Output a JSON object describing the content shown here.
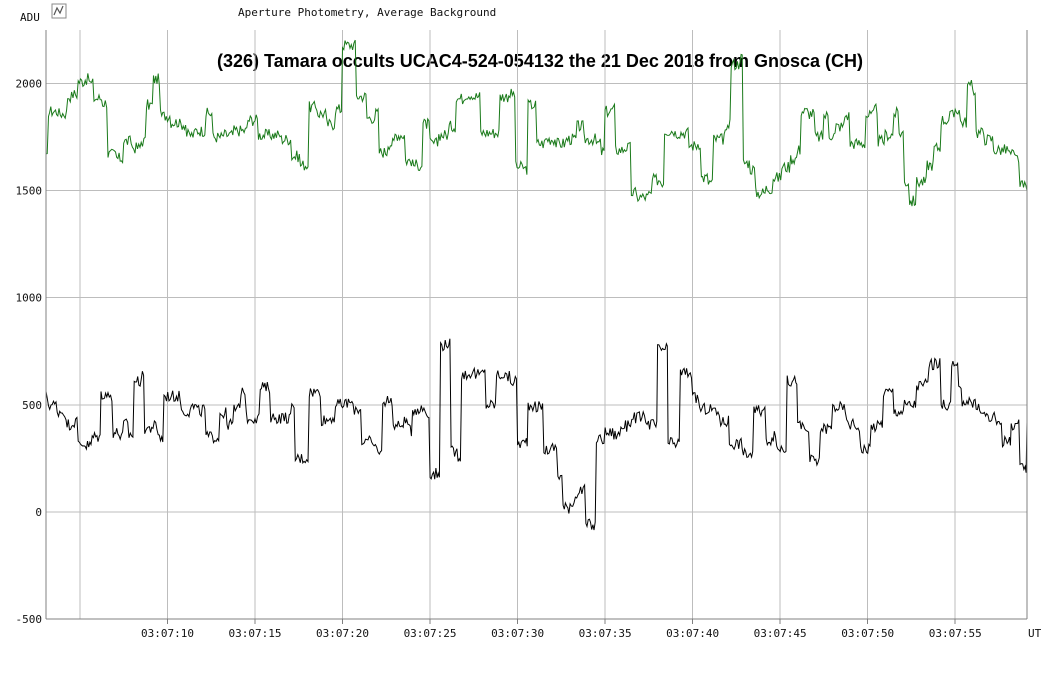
{
  "header": {
    "ylabel": "ADU",
    "subtitle": "Aperture Photometry, Average Background",
    "icon": "graph-icon"
  },
  "chart_data": {
    "type": "line",
    "title": "(326) Tamara occults UCAC4-524-054132 the 21 Dec 2018 from Gnosca (CH)",
    "xlabel": "UT",
    "ylabel": "ADU",
    "ylim": [
      -500,
      2250
    ],
    "xlim": [
      3.06,
      59.1
    ],
    "grid": true,
    "x_ticks": [
      {
        "value": 10,
        "label": "03:07:10"
      },
      {
        "value": 15,
        "label": "03:07:15"
      },
      {
        "value": 20,
        "label": "03:07:20"
      },
      {
        "value": 25,
        "label": "03:07:25"
      },
      {
        "value": 30,
        "label": "03:07:30"
      },
      {
        "value": 35,
        "label": "03:07:35"
      },
      {
        "value": 40,
        "label": "03:07:40"
      },
      {
        "value": 45,
        "label": "03:07:45"
      },
      {
        "value": 50,
        "label": "03:07:50"
      },
      {
        "value": 55,
        "label": "03:07:55"
      }
    ],
    "y_ticks": [
      {
        "value": -500,
        "label": "-500"
      },
      {
        "value": 0,
        "label": "0"
      },
      {
        "value": 500,
        "label": "500"
      },
      {
        "value": 1000,
        "label": "1000"
      },
      {
        "value": 1500,
        "label": "1500"
      },
      {
        "value": 2000,
        "label": "2000"
      }
    ],
    "series": [
      {
        "color": "#1a7a1a",
        "points": [
          [
            3.06,
            1650
          ],
          [
            3.2,
            1870
          ],
          [
            3.8,
            1860
          ],
          [
            4.3,
            1940
          ],
          [
            4.6,
            1950
          ],
          [
            4.9,
            2010
          ],
          [
            5.3,
            2020
          ],
          [
            5.6,
            2000
          ],
          [
            5.8,
            1930
          ],
          [
            6.3,
            1910
          ],
          [
            6.6,
            1670
          ],
          [
            7.1,
            1650
          ],
          [
            7.5,
            1730
          ],
          [
            8.0,
            1700
          ],
          [
            8.5,
            1730
          ],
          [
            8.8,
            1900
          ],
          [
            9.2,
            2020
          ],
          [
            9.6,
            1850
          ],
          [
            10.2,
            1820
          ],
          [
            10.7,
            1810
          ],
          [
            11.1,
            1760
          ],
          [
            11.6,
            1780
          ],
          [
            12.2,
            1860
          ],
          [
            12.6,
            1750
          ],
          [
            13.2,
            1760
          ],
          [
            13.8,
            1780
          ],
          [
            14.3,
            1780
          ],
          [
            14.6,
            1830
          ],
          [
            15.2,
            1760
          ],
          [
            15.8,
            1760
          ],
          [
            16.5,
            1740
          ],
          [
            17.1,
            1660
          ],
          [
            17.6,
            1620
          ],
          [
            18.1,
            1890
          ],
          [
            18.6,
            1860
          ],
          [
            19.1,
            1810
          ],
          [
            19.6,
            1880
          ],
          [
            20.0,
            2180
          ],
          [
            20.5,
            2180
          ],
          [
            20.8,
            1940
          ],
          [
            21.4,
            1840
          ],
          [
            21.9,
            1860
          ],
          [
            22.1,
            1680
          ],
          [
            22.6,
            1720
          ],
          [
            23.0,
            1760
          ],
          [
            23.6,
            1640
          ],
          [
            24.0,
            1620
          ],
          [
            24.6,
            1810
          ],
          [
            25.0,
            1720
          ],
          [
            25.5,
            1760
          ],
          [
            26.1,
            1800
          ],
          [
            26.5,
            1930
          ],
          [
            27.0,
            1950
          ],
          [
            27.5,
            1940
          ],
          [
            27.9,
            1770
          ],
          [
            28.6,
            1770
          ],
          [
            29.0,
            1940
          ],
          [
            29.5,
            1950
          ],
          [
            29.9,
            1610
          ],
          [
            30.4,
            1600
          ],
          [
            30.6,
            1900
          ],
          [
            31.1,
            1720
          ],
          [
            31.6,
            1740
          ],
          [
            32.2,
            1720
          ],
          [
            32.8,
            1740
          ],
          [
            33.4,
            1800
          ],
          [
            33.8,
            1740
          ],
          [
            34.5,
            1720
          ],
          [
            34.8,
            1680
          ],
          [
            35.0,
            1870
          ],
          [
            35.4,
            1880
          ],
          [
            35.6,
            1690
          ],
          [
            36.1,
            1700
          ],
          [
            36.5,
            1490
          ],
          [
            36.8,
            1470
          ],
          [
            37.5,
            1480
          ],
          [
            37.7,
            1550
          ],
          [
            38.2,
            1540
          ],
          [
            38.4,
            1780
          ],
          [
            39.0,
            1770
          ],
          [
            39.8,
            1710
          ],
          [
            40.3,
            1720
          ],
          [
            40.5,
            1560
          ],
          [
            40.9,
            1540
          ],
          [
            41.2,
            1740
          ],
          [
            41.8,
            1760
          ],
          [
            42.0,
            1820
          ],
          [
            42.2,
            2090
          ],
          [
            42.7,
            2120
          ],
          [
            42.9,
            1630
          ],
          [
            43.3,
            1600
          ],
          [
            43.6,
            1490
          ],
          [
            44.2,
            1510
          ],
          [
            44.6,
            1560
          ],
          [
            45.1,
            1610
          ],
          [
            45.6,
            1650
          ],
          [
            46.0,
            1690
          ],
          [
            46.2,
            1870
          ],
          [
            46.6,
            1860
          ],
          [
            47.0,
            1750
          ],
          [
            47.5,
            1850
          ],
          [
            47.8,
            1760
          ],
          [
            48.2,
            1800
          ],
          [
            48.7,
            1850
          ],
          [
            49.0,
            1720
          ],
          [
            49.5,
            1720
          ],
          [
            49.9,
            1850
          ],
          [
            50.4,
            1880
          ],
          [
            50.6,
            1730
          ],
          [
            51.0,
            1760
          ],
          [
            51.5,
            1860
          ],
          [
            51.8,
            1770
          ],
          [
            52.1,
            1540
          ],
          [
            52.4,
            1450
          ],
          [
            52.8,
            1540
          ],
          [
            53.4,
            1620
          ],
          [
            53.8,
            1700
          ],
          [
            54.2,
            1830
          ],
          [
            54.7,
            1850
          ],
          [
            55.0,
            1880
          ],
          [
            55.3,
            1820
          ],
          [
            55.7,
            1990
          ],
          [
            56.0,
            1970
          ],
          [
            56.2,
            1770
          ],
          [
            56.7,
            1740
          ],
          [
            57.2,
            1690
          ],
          [
            57.6,
            1690
          ],
          [
            58.1,
            1670
          ],
          [
            58.4,
            1650
          ],
          [
            58.7,
            1520
          ],
          [
            59.1,
            1500
          ]
        ]
      },
      {
        "color": "#000000",
        "points": [
          [
            3.06,
            540
          ],
          [
            3.2,
            500
          ],
          [
            3.7,
            470
          ],
          [
            4.2,
            410
          ],
          [
            4.6,
            420
          ],
          [
            4.9,
            320
          ],
          [
            5.3,
            310
          ],
          [
            5.7,
            350
          ],
          [
            6.1,
            350
          ],
          [
            6.2,
            550
          ],
          [
            6.6,
            540
          ],
          [
            6.9,
            370
          ],
          [
            7.3,
            350
          ],
          [
            7.5,
            410
          ],
          [
            7.8,
            360
          ],
          [
            8.1,
            610
          ],
          [
            8.5,
            630
          ],
          [
            8.7,
            390
          ],
          [
            9.1,
            400
          ],
          [
            9.4,
            370
          ],
          [
            9.6,
            340
          ],
          [
            9.8,
            540
          ],
          [
            10.3,
            540
          ],
          [
            10.8,
            470
          ],
          [
            11.3,
            490
          ],
          [
            11.7,
            470
          ],
          [
            12.0,
            480
          ],
          [
            12.2,
            350
          ],
          [
            12.7,
            350
          ],
          [
            13.0,
            460
          ],
          [
            13.4,
            410
          ],
          [
            13.8,
            480
          ],
          [
            14.2,
            570
          ],
          [
            14.5,
            440
          ],
          [
            15.0,
            440
          ],
          [
            15.3,
            580
          ],
          [
            15.7,
            580
          ],
          [
            15.9,
            440
          ],
          [
            16.6,
            440
          ],
          [
            17.1,
            480
          ],
          [
            17.3,
            250
          ],
          [
            17.8,
            250
          ],
          [
            18.1,
            560
          ],
          [
            18.5,
            560
          ],
          [
            18.8,
            430
          ],
          [
            19.3,
            440
          ],
          [
            19.6,
            500
          ],
          [
            20.2,
            510
          ],
          [
            20.6,
            480
          ],
          [
            20.9,
            480
          ],
          [
            21.1,
            330
          ],
          [
            21.6,
            320
          ],
          [
            21.8,
            300
          ],
          [
            22.1,
            270
          ],
          [
            22.3,
            520
          ],
          [
            22.7,
            520
          ],
          [
            22.9,
            400
          ],
          [
            23.4,
            420
          ],
          [
            23.8,
            380
          ],
          [
            24.0,
            480
          ],
          [
            24.5,
            480
          ],
          [
            24.8,
            450
          ],
          [
            25.0,
            180
          ],
          [
            25.4,
            170
          ],
          [
            25.6,
            780
          ],
          [
            26.0,
            790
          ],
          [
            26.2,
            280
          ],
          [
            26.6,
            260
          ],
          [
            26.8,
            640
          ],
          [
            27.3,
            650
          ],
          [
            27.6,
            640
          ],
          [
            28.0,
            650
          ],
          [
            28.2,
            500
          ],
          [
            28.6,
            500
          ],
          [
            28.8,
            640
          ],
          [
            29.3,
            630
          ],
          [
            29.6,
            610
          ],
          [
            30.0,
            320
          ],
          [
            30.5,
            330
          ],
          [
            30.6,
            500
          ],
          [
            31.0,
            490
          ],
          [
            31.5,
            290
          ],
          [
            32.0,
            300
          ],
          [
            32.3,
            170
          ],
          [
            32.6,
            20
          ],
          [
            33.0,
            40
          ],
          [
            33.3,
            90
          ],
          [
            33.6,
            100
          ],
          [
            33.9,
            -60
          ],
          [
            34.3,
            -70
          ],
          [
            34.5,
            340
          ],
          [
            35.0,
            370
          ],
          [
            35.5,
            360
          ],
          [
            35.9,
            400
          ],
          [
            36.3,
            420
          ],
          [
            36.6,
            440
          ],
          [
            37.1,
            440
          ],
          [
            37.4,
            410
          ],
          [
            37.9,
            400
          ],
          [
            38.0,
            760
          ],
          [
            38.5,
            760
          ],
          [
            38.6,
            320
          ],
          [
            39.1,
            320
          ],
          [
            39.3,
            650
          ],
          [
            39.8,
            650
          ],
          [
            40.0,
            530
          ],
          [
            40.4,
            480
          ],
          [
            40.8,
            480
          ],
          [
            41.3,
            460
          ],
          [
            41.6,
            420
          ],
          [
            42.0,
            430
          ],
          [
            42.1,
            320
          ],
          [
            42.5,
            320
          ],
          [
            42.9,
            270
          ],
          [
            43.3,
            270
          ],
          [
            43.5,
            470
          ],
          [
            43.9,
            470
          ],
          [
            44.2,
            340
          ],
          [
            44.6,
            350
          ],
          [
            44.8,
            300
          ],
          [
            45.2,
            300
          ],
          [
            45.4,
            610
          ],
          [
            45.9,
            620
          ],
          [
            46.0,
            400
          ],
          [
            46.4,
            380
          ],
          [
            46.7,
            240
          ],
          [
            47.1,
            230
          ],
          [
            47.3,
            390
          ],
          [
            47.7,
            390
          ],
          [
            48.0,
            490
          ],
          [
            48.5,
            480
          ],
          [
            48.8,
            410
          ],
          [
            49.3,
            400
          ],
          [
            49.6,
            290
          ],
          [
            50.0,
            300
          ],
          [
            50.2,
            400
          ],
          [
            50.7,
            410
          ],
          [
            50.9,
            560
          ],
          [
            51.3,
            560
          ],
          [
            51.5,
            470
          ],
          [
            51.9,
            470
          ],
          [
            52.1,
            500
          ],
          [
            52.6,
            500
          ],
          [
            52.8,
            590
          ],
          [
            53.3,
            600
          ],
          [
            53.5,
            690
          ],
          [
            53.9,
            690
          ],
          [
            54.2,
            500
          ],
          [
            54.6,
            500
          ],
          [
            54.8,
            680
          ],
          [
            55.2,
            560
          ],
          [
            55.4,
            520
          ],
          [
            55.8,
            520
          ],
          [
            56.0,
            500
          ],
          [
            56.4,
            460
          ],
          [
            56.8,
            440
          ],
          [
            57.3,
            420
          ],
          [
            57.7,
            330
          ],
          [
            58.1,
            330
          ],
          [
            58.2,
            410
          ],
          [
            58.5,
            410
          ],
          [
            58.7,
            200
          ],
          [
            59.0,
            200
          ],
          [
            59.1,
            420
          ]
        ]
      }
    ]
  }
}
